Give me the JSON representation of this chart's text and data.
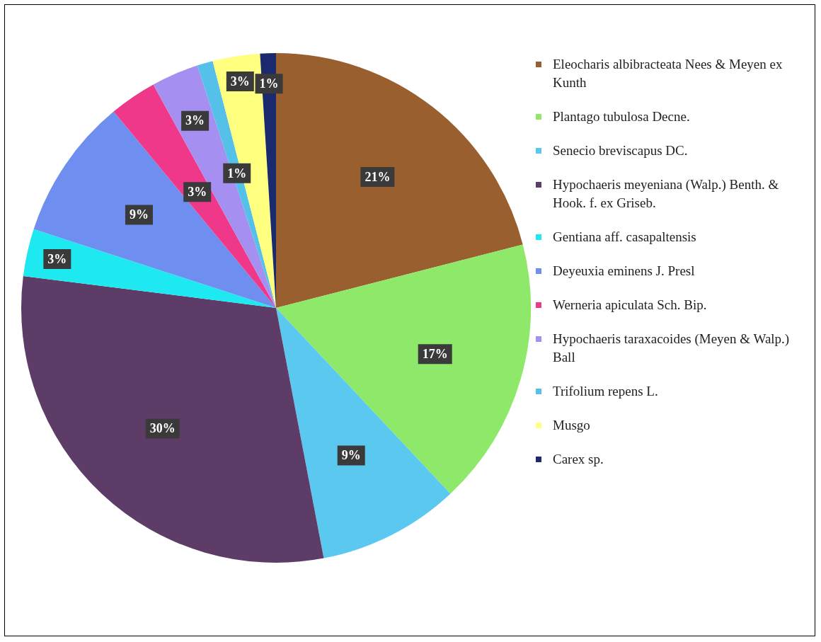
{
  "chart_data": {
    "type": "pie",
    "categories": [
      "Eleocharis albibracteata Nees & Meyen ex Kunth",
      "Plantago tubulosa Decne.",
      "Senecio breviscapus DC.",
      "Hypochaeris meyeniana (Walp.) Benth. & Hook. f. ex Griseb.",
      "Gentiana aff. casapaltensis",
      "Deyeuxia eminens J. Presl",
      "Werneria apiculata Sch. Bip.",
      "Hypochaeris taraxacoides (Meyen & Walp.) Ball",
      "Trifolium repens L.",
      "Musgo",
      "Carex sp."
    ],
    "values": [
      21,
      17,
      9,
      30,
      3,
      9,
      3,
      3,
      1,
      3,
      1
    ],
    "colors": [
      "#9a5f2e",
      "#8ee86a",
      "#5bc8f0",
      "#5e3c68",
      "#1ee8f0",
      "#6f8ff0",
      "#f0388a",
      "#a58ff0",
      "#55c0e8",
      "#ffff80",
      "#1a2a6c"
    ],
    "value_labels": [
      "21%",
      "17%",
      "9%",
      "30%",
      "3%",
      "9%",
      "3%",
      "3%",
      "1%",
      "3%",
      "1%"
    ],
    "legend": "right"
  }
}
